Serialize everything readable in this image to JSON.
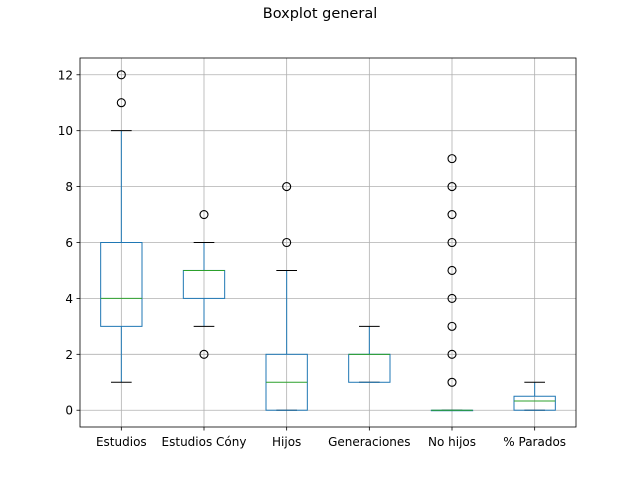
{
  "chart_data": {
    "type": "boxplot",
    "title": "Boxplot general",
    "xlabel": "",
    "ylabel": "",
    "ylim": [
      -0.6,
      12.6
    ],
    "yticks": [
      "0",
      "2",
      "4",
      "6",
      "8",
      "10",
      "12"
    ],
    "grid": true,
    "categories": [
      "Estudios",
      "Estudios Cóny",
      "Hijos",
      "Generaciones",
      "No hijos",
      "% Parados"
    ],
    "boxes": [
      {
        "name": "Estudios",
        "whislo": 1,
        "q1": 3,
        "med": 4,
        "q3": 6,
        "whishi": 10,
        "fliers": [
          11,
          12
        ]
      },
      {
        "name": "Estudios Cóny",
        "whislo": 3,
        "q1": 4,
        "med": 5,
        "q3": 5,
        "whishi": 6,
        "fliers": [
          2,
          7
        ]
      },
      {
        "name": "Hijos",
        "whislo": 0,
        "q1": 0,
        "med": 1,
        "q3": 2,
        "whishi": 5,
        "fliers": [
          6,
          8
        ]
      },
      {
        "name": "Generaciones",
        "whislo": 1,
        "q1": 1,
        "med": 2,
        "q3": 2,
        "whishi": 3,
        "fliers": []
      },
      {
        "name": "No hijos",
        "whislo": 0,
        "q1": 0,
        "med": 0,
        "q3": 0,
        "whishi": 0,
        "fliers": [
          1,
          2,
          3,
          4,
          5,
          6,
          7,
          8,
          9
        ]
      },
      {
        "name": "% Parados",
        "whislo": 0,
        "q1": 0,
        "med": 0.33,
        "q3": 0.5,
        "whishi": 1,
        "fliers": []
      }
    ],
    "colors": {
      "box": "#1f77b4",
      "median": "#2ca02c",
      "whisker": "#1f77b4",
      "cap": "#000000",
      "flier": "#000000",
      "grid": "#b0b0b0",
      "axes": "#000000"
    }
  }
}
